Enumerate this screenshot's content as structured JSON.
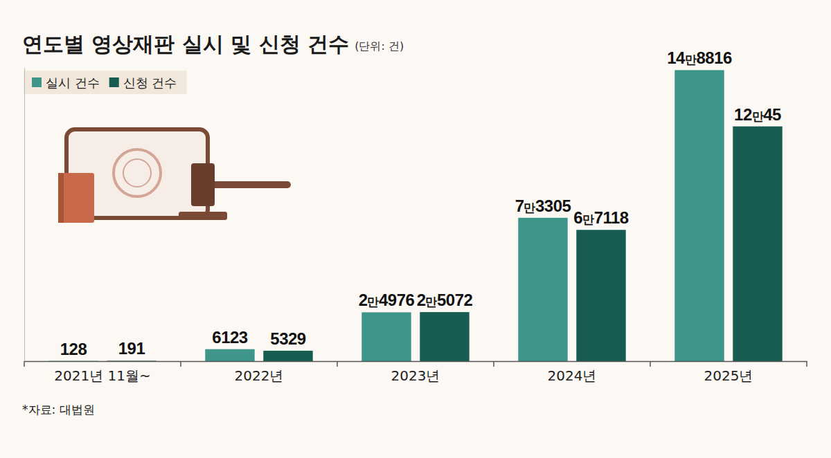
{
  "chart_data": {
    "type": "bar",
    "title": "연도별 영상재판 실시 및 신청 건수",
    "subtitle": "(단위: 건)",
    "source": "*자료: 대법원",
    "categories": [
      "2021년 11월~",
      "2022년",
      "2023년",
      "2024년",
      "2025년"
    ],
    "series": [
      {
        "name": "실시 건수",
        "color": "#3e958a",
        "values": [
          128,
          6123,
          24976,
          73305,
          148816
        ],
        "value_labels": [
          "128",
          "6123",
          "2만4976",
          "7만3305",
          "14만8816"
        ]
      },
      {
        "name": "신청 건수",
        "color": "#175b51",
        "values": [
          191,
          5329,
          25072,
          67118,
          120045
        ],
        "value_labels": [
          "191",
          "5329",
          "2만5072",
          "6만7118",
          "12만45"
        ]
      }
    ],
    "ylim": [
      0,
      150000
    ],
    "tick_labels": "x",
    "data_labels": true,
    "legend": "top-left"
  }
}
